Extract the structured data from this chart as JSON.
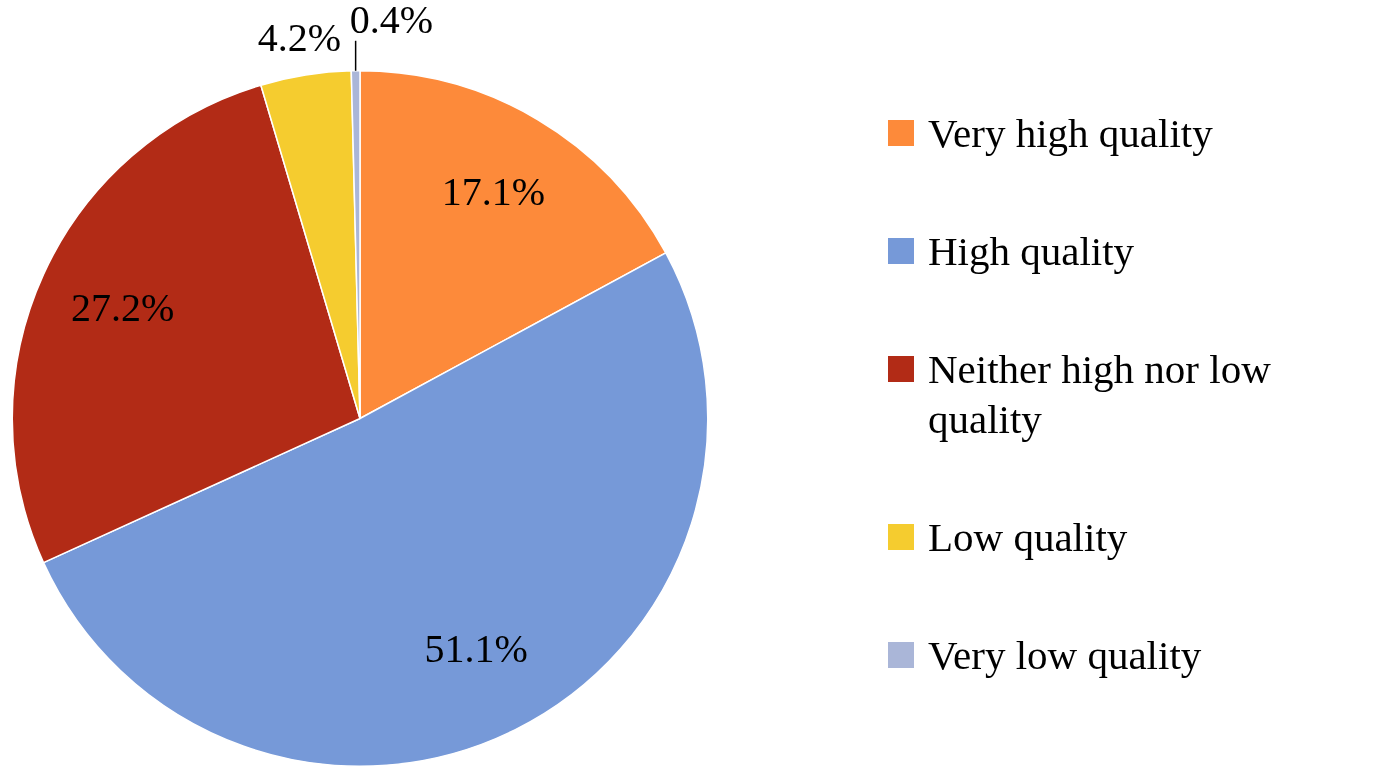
{
  "chart_data": {
    "type": "pie",
    "categories": [
      "Very high quality",
      "High quality",
      "Neither high nor low quality",
      "Low quality",
      "Very low quality"
    ],
    "values": [
      17.1,
      51.1,
      27.2,
      4.2,
      0.4
    ],
    "colors": [
      "#fd8a3a",
      "#7699d8",
      "#b22b16",
      "#f5cc2f",
      "#aab6d8"
    ],
    "value_labels": [
      "17.1%",
      "51.1%",
      "27.2%",
      "4.2%",
      "0.4%"
    ],
    "legend": "right"
  }
}
